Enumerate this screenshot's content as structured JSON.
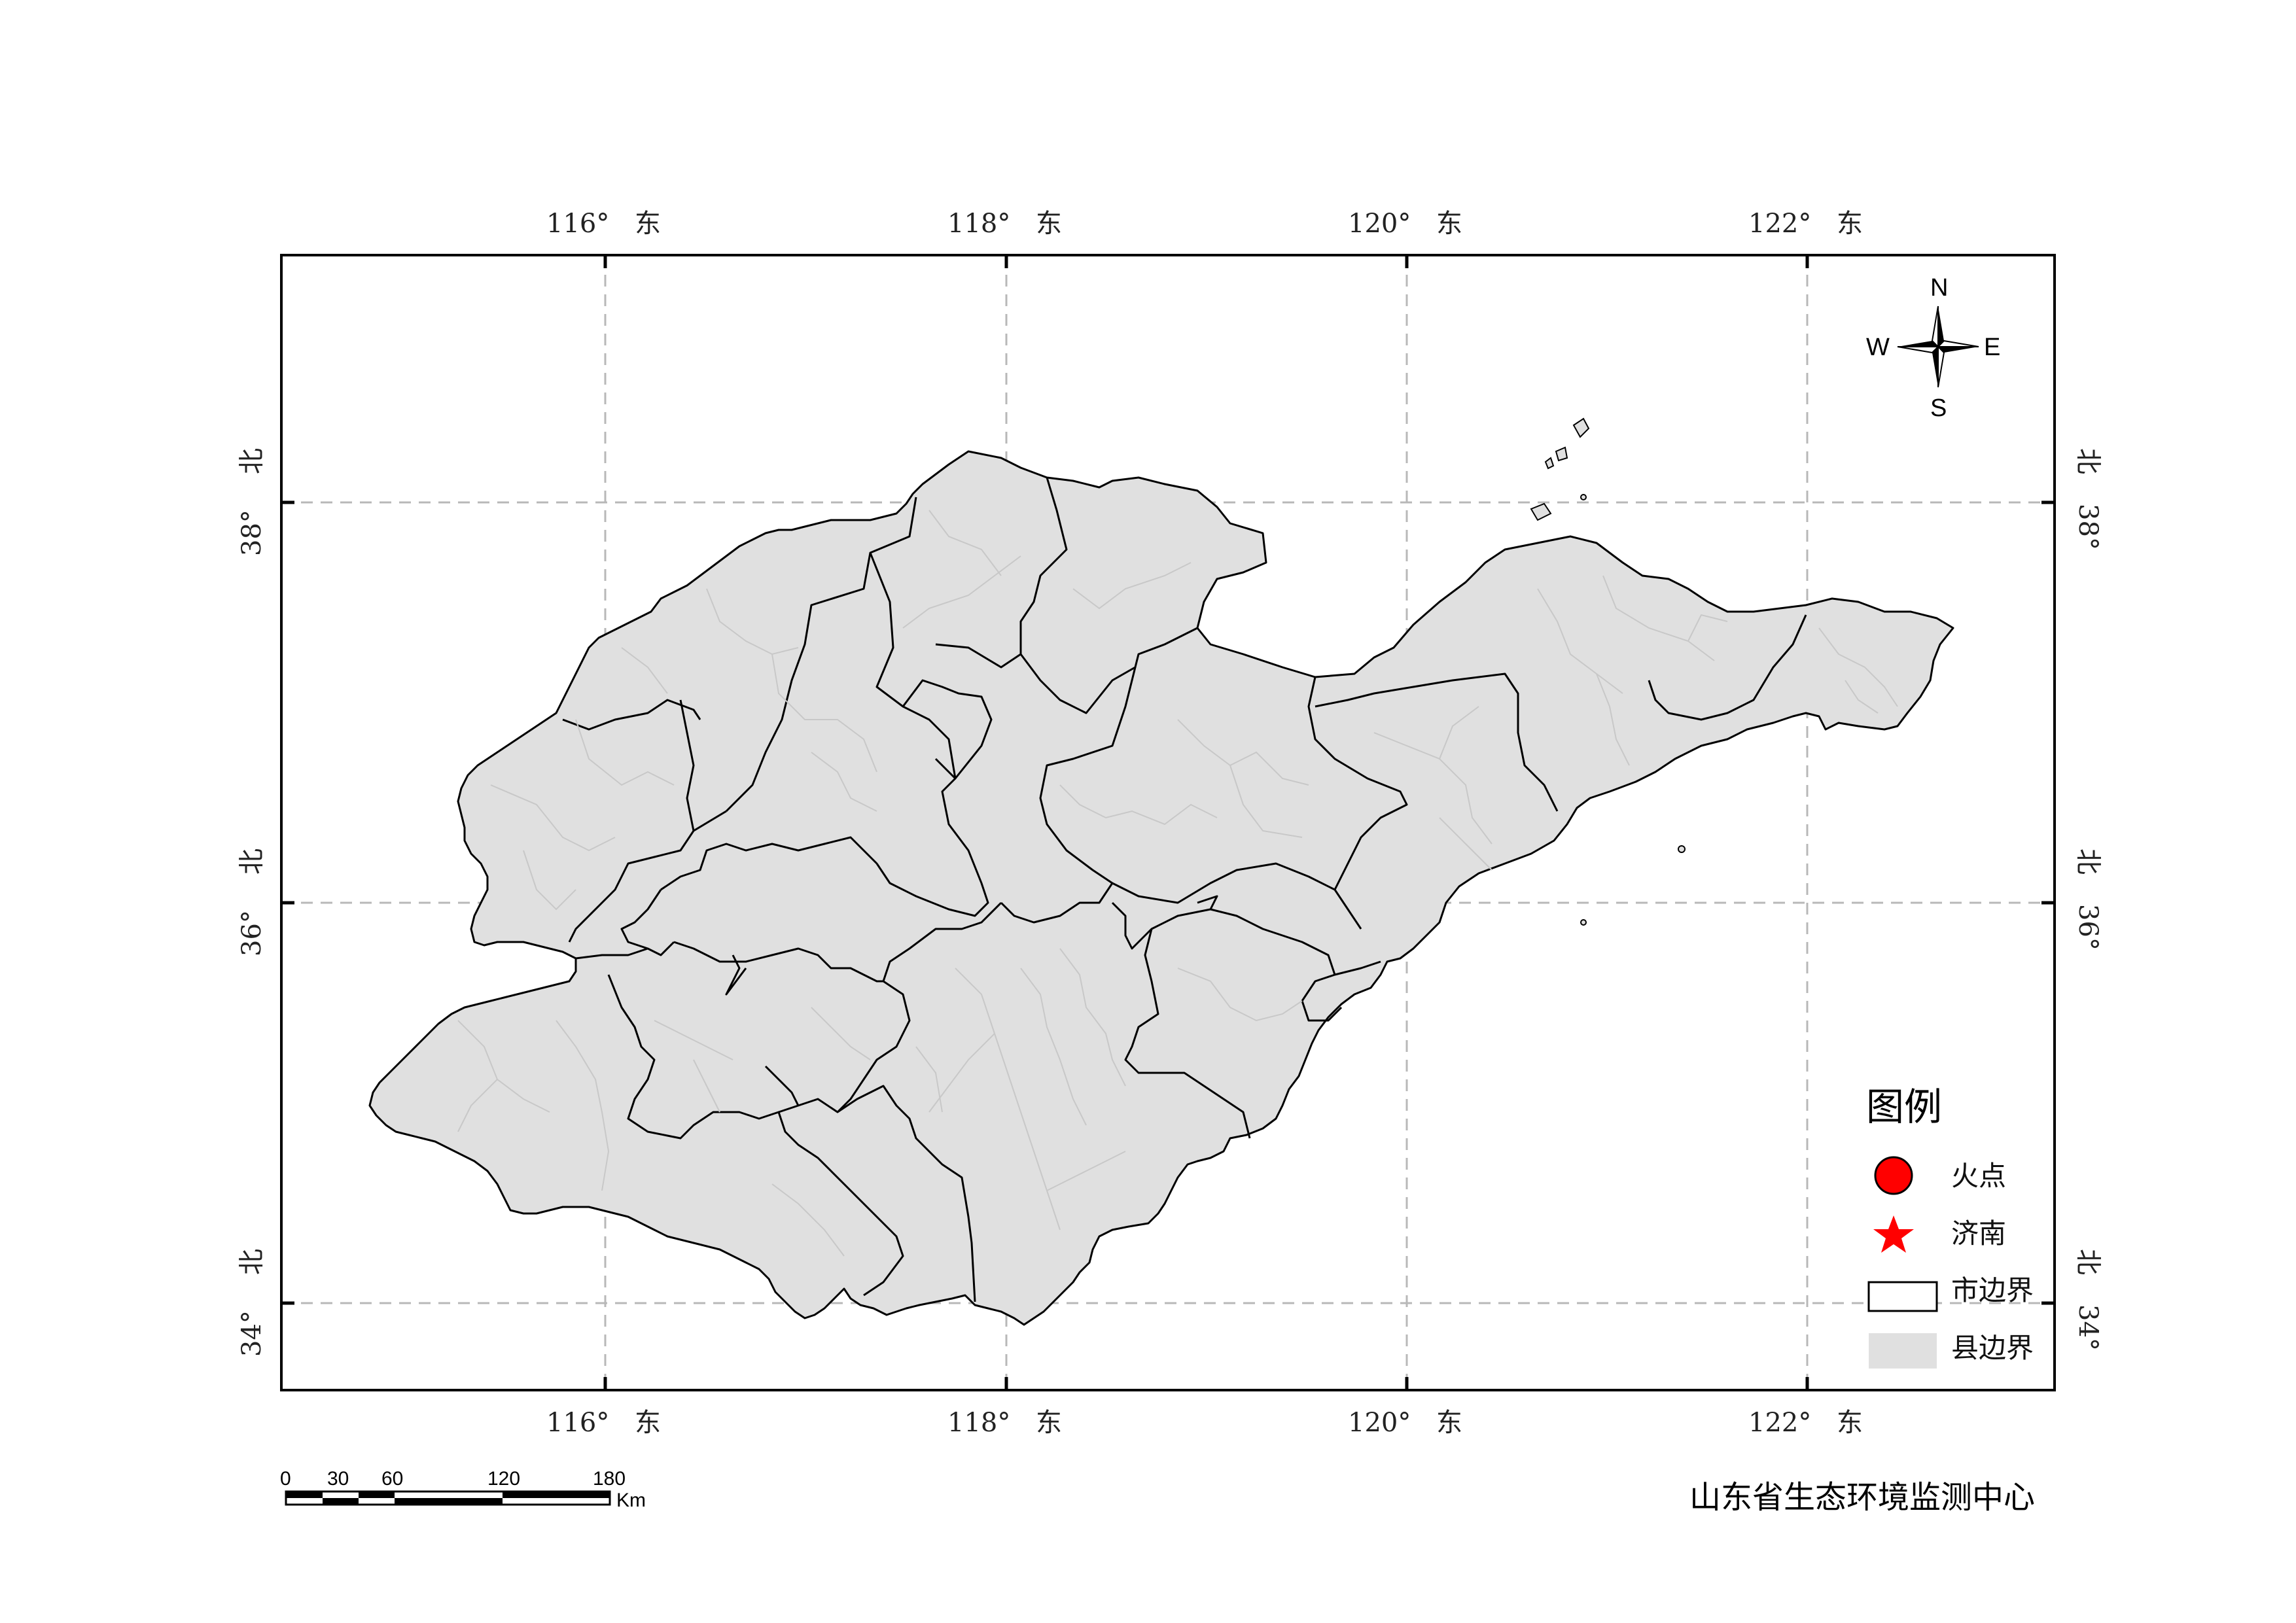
{
  "map": {
    "longitude_labels": [
      {
        "deg": "116°",
        "dir": "东"
      },
      {
        "deg": "118°",
        "dir": "东"
      },
      {
        "deg": "120°",
        "dir": "东"
      },
      {
        "deg": "122°",
        "dir": "东"
      }
    ],
    "latitude_labels": [
      {
        "deg": "38°",
        "dir": "北"
      },
      {
        "deg": "36°",
        "dir": "北"
      },
      {
        "deg": "34°",
        "dir": "北"
      }
    ],
    "colors": {
      "county_fill": "#e0e0e0",
      "city_border": "#000000",
      "county_border": "#c8c8c8",
      "graticule": "#b8b8b8",
      "fire_point": "#ff0000",
      "capital_star": "#ff0000"
    }
  },
  "compass": {
    "n": "N",
    "s": "S",
    "e": "E",
    "w": "W"
  },
  "legend": {
    "title": "图例",
    "items": [
      {
        "symbol": "red-circle",
        "label": "火点"
      },
      {
        "symbol": "red-star",
        "label": "济南"
      },
      {
        "symbol": "outline-rect",
        "label": "市边界"
      },
      {
        "symbol": "grey-rect",
        "label": "县边界"
      }
    ]
  },
  "scale_bar": {
    "ticks": [
      "0",
      "30",
      "60",
      "120",
      "180"
    ],
    "unit": "Km"
  },
  "organization": "山东省生态环境监测中心"
}
